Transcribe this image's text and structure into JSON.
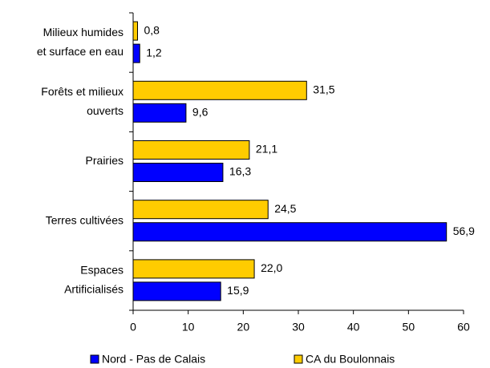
{
  "chart_data": {
    "type": "barh",
    "categories": [
      [
        "Milieux humides",
        "et surface en eau"
      ],
      [
        "Forêts et milieux",
        "ouverts"
      ],
      [
        "Prairies"
      ],
      [
        "Terres cultivées"
      ],
      [
        "Espaces",
        "Artificialisés"
      ]
    ],
    "series": [
      {
        "name": "Nord - Pas de Calais",
        "color": "#0000ff",
        "values": [
          1.2,
          9.6,
          16.3,
          56.9,
          15.9
        ],
        "value_labels": [
          "1,2",
          "9,6",
          "16,3",
          "56,9",
          "15,9"
        ]
      },
      {
        "name": "CA du Boulonnais",
        "color": "#ffcc00",
        "values": [
          0.8,
          31.5,
          21.1,
          24.5,
          22.0
        ],
        "value_labels": [
          "0,8",
          "31,5",
          "21,1",
          "24,5",
          "22,0"
        ]
      }
    ],
    "xlim": [
      0,
      60
    ],
    "xticks": [
      0,
      10,
      20,
      30,
      40,
      50,
      60
    ],
    "legend": "bottom"
  }
}
